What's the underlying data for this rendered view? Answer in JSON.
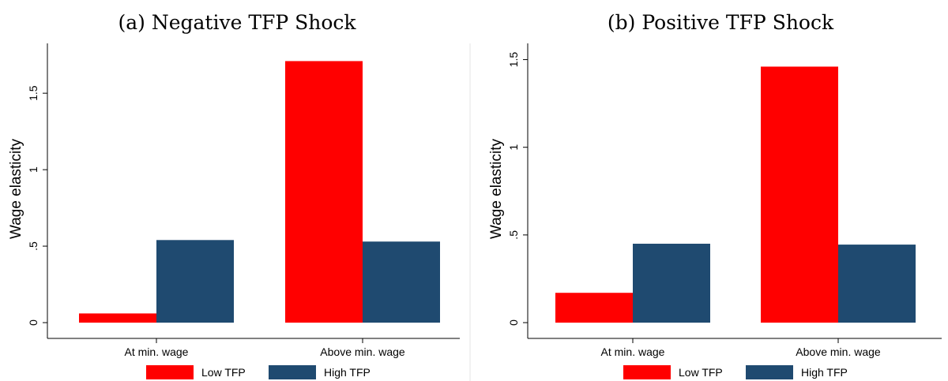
{
  "chart_data": [
    {
      "type": "bar",
      "title": "(a) Negative TFP Shock",
      "ylabel": "Wage elasticity",
      "xlabel": "",
      "categories": [
        "At min. wage",
        "Above min. wage"
      ],
      "series": [
        {
          "name": "Low TFP",
          "color": "#ff0000",
          "values": [
            0.06,
            1.71
          ]
        },
        {
          "name": "High TFP",
          "color": "#1f4a70",
          "values": [
            0.54,
            0.53
          ]
        }
      ],
      "ylim": [
        0,
        1.8
      ],
      "yticks": [
        0,
        0.5,
        1,
        1.5
      ],
      "ytick_labels": [
        "0",
        ".5",
        "1",
        "1.5"
      ],
      "grid": false,
      "legend_position": "bottom"
    },
    {
      "type": "bar",
      "title": "(b) Positive TFP Shock",
      "ylabel": "Wage elasticity",
      "xlabel": "",
      "categories": [
        "At min. wage",
        "Above min. wage"
      ],
      "series": [
        {
          "name": "Low TFP",
          "color": "#ff0000",
          "values": [
            0.17,
            1.46
          ]
        },
        {
          "name": "High TFP",
          "color": "#1f4a70",
          "values": [
            0.45,
            0.445
          ]
        }
      ],
      "ylim": [
        0,
        1.57
      ],
      "yticks": [
        0,
        0.5,
        1,
        1.5
      ],
      "ytick_labels": [
        "0",
        ".5",
        "1",
        "1.5"
      ],
      "grid": false,
      "legend_position": "bottom"
    }
  ]
}
